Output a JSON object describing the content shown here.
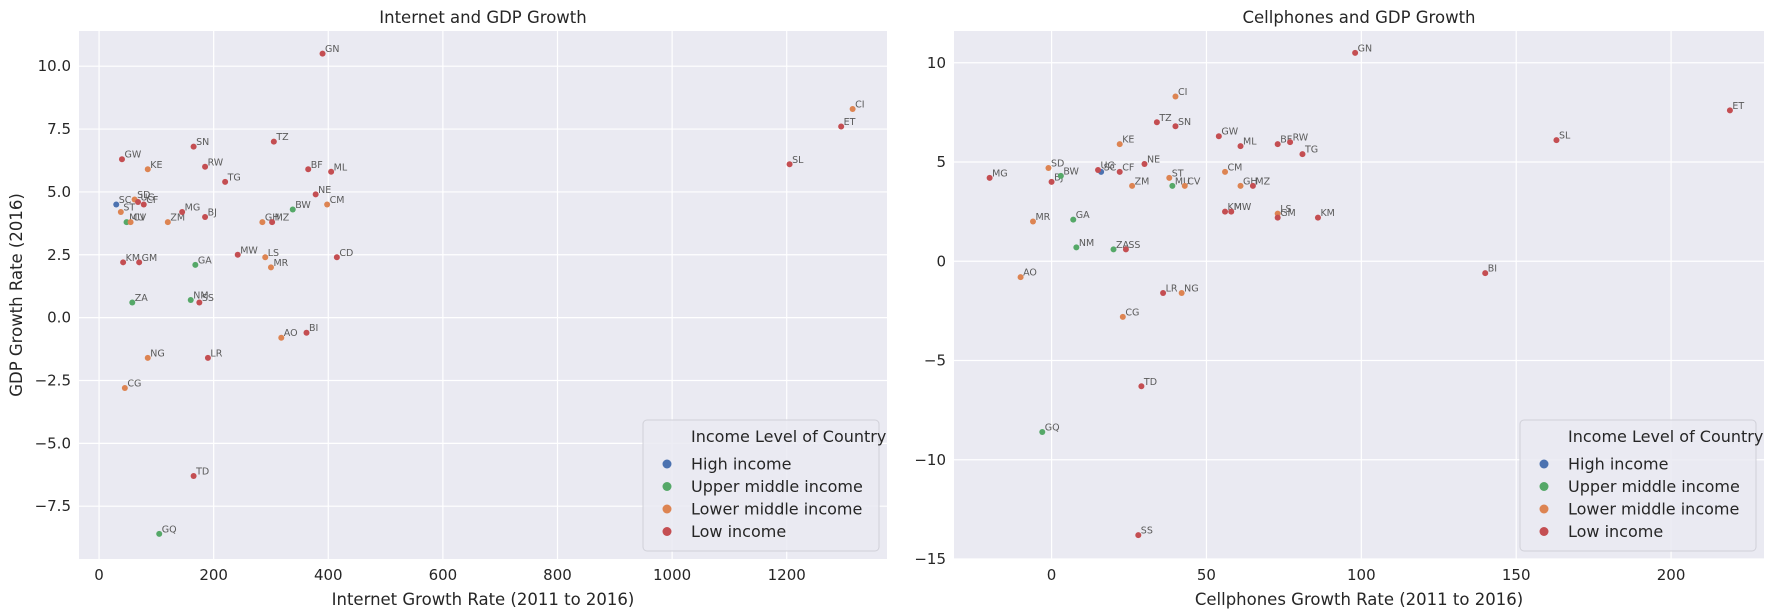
{
  "chart_data": [
    {
      "type": "scatter",
      "title": "Internet and GDP Growth",
      "xlabel": "Internet Growth Rate (2011 to 2016)",
      "ylabel": "GDP Growth Rate (2016)",
      "xlim": [
        -35,
        1375
      ],
      "ylim": [
        -9.6,
        11.4
      ],
      "xticks": [
        0,
        200,
        400,
        600,
        800,
        1000,
        1200
      ],
      "yticks": [
        -7.5,
        -5.0,
        -2.5,
        0.0,
        2.5,
        5.0,
        7.5,
        10.0
      ],
      "ytick_labels": [
        "−7.5",
        "−5.0",
        "−2.5",
        "0.0",
        "2.5",
        "5.0",
        "7.5",
        "10.0"
      ],
      "legend": {
        "title": "Income Level of Country",
        "position": "lower right",
        "entries": [
          "High income",
          "Upper middle income",
          "Lower middle income",
          "Low income"
        ]
      },
      "points": [
        {
          "label": "SC",
          "x": 30,
          "y": 4.5,
          "group": "High income"
        },
        {
          "label": "ST",
          "x": 38,
          "y": 4.2,
          "group": "Lower middle income"
        },
        {
          "label": "GW",
          "x": 40,
          "y": 6.3,
          "group": "Low income"
        },
        {
          "label": "KM",
          "x": 42,
          "y": 2.2,
          "group": "Low income"
        },
        {
          "label": "CG",
          "x": 45,
          "y": -2.8,
          "group": "Lower middle income"
        },
        {
          "label": "MU",
          "x": 48,
          "y": 3.8,
          "group": "Upper middle income"
        },
        {
          "label": "CV",
          "x": 55,
          "y": 3.8,
          "group": "Lower middle income"
        },
        {
          "label": "ZA",
          "x": 58,
          "y": 0.6,
          "group": "Upper middle income"
        },
        {
          "label": "SD",
          "x": 62,
          "y": 4.7,
          "group": "Lower middle income"
        },
        {
          "label": "UG",
          "x": 68,
          "y": 4.6,
          "group": "Low income"
        },
        {
          "label": "GM",
          "x": 70,
          "y": 2.2,
          "group": "Low income"
        },
        {
          "label": "CF",
          "x": 78,
          "y": 4.5,
          "group": "Low income"
        },
        {
          "label": "KE",
          "x": 85,
          "y": 5.9,
          "group": "Lower middle income"
        },
        {
          "label": "NG",
          "x": 85,
          "y": -1.6,
          "group": "Lower middle income"
        },
        {
          "label": "GQ",
          "x": 105,
          "y": -8.6,
          "group": "Upper middle income"
        },
        {
          "label": "ZM",
          "x": 120,
          "y": 3.8,
          "group": "Lower middle income"
        },
        {
          "label": "MG",
          "x": 145,
          "y": 4.2,
          "group": "Low income"
        },
        {
          "label": "NM",
          "x": 160,
          "y": 0.7,
          "group": "Upper middle income"
        },
        {
          "label": "SN",
          "x": 165,
          "y": 6.8,
          "group": "Low income"
        },
        {
          "label": "TD",
          "x": 165,
          "y": -6.3,
          "group": "Low income"
        },
        {
          "label": "GA",
          "x": 168,
          "y": 2.1,
          "group": "Upper middle income"
        },
        {
          "label": "SS",
          "x": 175,
          "y": 0.6,
          "group": "Low income"
        },
        {
          "label": "RW",
          "x": 185,
          "y": 6.0,
          "group": "Low income"
        },
        {
          "label": "BJ",
          "x": 185,
          "y": 4.0,
          "group": "Low income"
        },
        {
          "label": "LR",
          "x": 190,
          "y": -1.6,
          "group": "Low income"
        },
        {
          "label": "TG",
          "x": 220,
          "y": 5.4,
          "group": "Low income"
        },
        {
          "label": "MW",
          "x": 242,
          "y": 2.5,
          "group": "Low income"
        },
        {
          "label": "GH",
          "x": 285,
          "y": 3.8,
          "group": "Lower middle income"
        },
        {
          "label": "LS",
          "x": 290,
          "y": 2.4,
          "group": "Lower middle income"
        },
        {
          "label": "MR",
          "x": 300,
          "y": 2.0,
          "group": "Lower middle income"
        },
        {
          "label": "MZ",
          "x": 302,
          "y": 3.8,
          "group": "Low income"
        },
        {
          "label": "TZ",
          "x": 305,
          "y": 7.0,
          "group": "Low income"
        },
        {
          "label": "AO",
          "x": 318,
          "y": -0.8,
          "group": "Lower middle income"
        },
        {
          "label": "BW",
          "x": 338,
          "y": 4.3,
          "group": "Upper middle income"
        },
        {
          "label": "BI",
          "x": 362,
          "y": -0.6,
          "group": "Low income"
        },
        {
          "label": "BF",
          "x": 365,
          "y": 5.9,
          "group": "Low income"
        },
        {
          "label": "NE",
          "x": 378,
          "y": 4.9,
          "group": "Low income"
        },
        {
          "label": "GN",
          "x": 390,
          "y": 10.5,
          "group": "Low income"
        },
        {
          "label": "CM",
          "x": 398,
          "y": 4.5,
          "group": "Lower middle income"
        },
        {
          "label": "ML",
          "x": 405,
          "y": 5.8,
          "group": "Low income"
        },
        {
          "label": "CD",
          "x": 415,
          "y": 2.4,
          "group": "Low income"
        },
        {
          "label": "SL",
          "x": 1205,
          "y": 6.1,
          "group": "Low income"
        },
        {
          "label": "ET",
          "x": 1295,
          "y": 7.6,
          "group": "Low income"
        },
        {
          "label": "CI",
          "x": 1315,
          "y": 8.3,
          "group": "Lower middle income"
        }
      ]
    },
    {
      "type": "scatter",
      "title": "Cellphones and GDP Growth",
      "xlabel": "Cellphones Growth Rate (2011 to 2016)",
      "ylabel": "",
      "xlim": [
        -31.5,
        230
      ],
      "ylim": [
        -15,
        11.6
      ],
      "xticks": [
        0,
        50,
        100,
        150,
        200
      ],
      "yticks": [
        -15,
        -10,
        -5,
        0,
        5,
        10
      ],
      "ytick_labels": [
        "−15",
        "−10",
        "−5",
        "0",
        "5",
        "10"
      ],
      "legend": {
        "title": "Income Level of Country",
        "position": "lower right",
        "entries": [
          "High income",
          "Upper middle income",
          "Lower middle income",
          "Low income"
        ]
      },
      "points": [
        {
          "label": "MG",
          "x": -20,
          "y": 4.2,
          "group": "Low income"
        },
        {
          "label": "AO",
          "x": -10,
          "y": -0.8,
          "group": "Lower middle income"
        },
        {
          "label": "MR",
          "x": -6,
          "y": 2.0,
          "group": "Lower middle income"
        },
        {
          "label": "GQ",
          "x": -3,
          "y": -8.6,
          "group": "Upper middle income"
        },
        {
          "label": "SD",
          "x": -1,
          "y": 4.7,
          "group": "Lower middle income"
        },
        {
          "label": "BJ",
          "x": 0,
          "y": 4.0,
          "group": "Low income"
        },
        {
          "label": "BW",
          "x": 3,
          "y": 4.3,
          "group": "Upper middle income"
        },
        {
          "label": "GA",
          "x": 7,
          "y": 2.1,
          "group": "Upper middle income"
        },
        {
          "label": "NM",
          "x": 8,
          "y": 0.7,
          "group": "Upper middle income"
        },
        {
          "label": "SC",
          "x": 16,
          "y": 4.5,
          "group": "High income"
        },
        {
          "label": "UG",
          "x": 15,
          "y": 4.6,
          "group": "Low income"
        },
        {
          "label": "ZA",
          "x": 20,
          "y": 0.6,
          "group": "Upper middle income"
        },
        {
          "label": "KE",
          "x": 22,
          "y": 5.9,
          "group": "Lower middle income"
        },
        {
          "label": "CF",
          "x": 22,
          "y": 4.5,
          "group": "Low income"
        },
        {
          "label": "CG",
          "x": 23,
          "y": -2.8,
          "group": "Lower middle income"
        },
        {
          "label": "SS",
          "x": 24,
          "y": 0.6,
          "group": "Low income"
        },
        {
          "label": "ZM",
          "x": 26,
          "y": 3.8,
          "group": "Lower middle income"
        },
        {
          "label": "SS",
          "x": 28,
          "y": -13.8,
          "group": "Low income"
        },
        {
          "label": "TD",
          "x": 29,
          "y": -6.3,
          "group": "Low income"
        },
        {
          "label": "NE",
          "x": 30,
          "y": 4.9,
          "group": "Low income"
        },
        {
          "label": "TZ",
          "x": 34,
          "y": 7.0,
          "group": "Low income"
        },
        {
          "label": "LR",
          "x": 36,
          "y": -1.6,
          "group": "Low income"
        },
        {
          "label": "ST",
          "x": 38,
          "y": 4.2,
          "group": "Lower middle income"
        },
        {
          "label": "MU",
          "x": 39,
          "y": 3.8,
          "group": "Upper middle income"
        },
        {
          "label": "CI",
          "x": 40,
          "y": 8.3,
          "group": "Lower middle income"
        },
        {
          "label": "SN",
          "x": 40,
          "y": 6.8,
          "group": "Low income"
        },
        {
          "label": "NG",
          "x": 42,
          "y": -1.6,
          "group": "Lower middle income"
        },
        {
          "label": "CV",
          "x": 43,
          "y": 3.8,
          "group": "Lower middle income"
        },
        {
          "label": "GW",
          "x": 54,
          "y": 6.3,
          "group": "Low income"
        },
        {
          "label": "CM",
          "x": 56,
          "y": 4.5,
          "group": "Lower middle income"
        },
        {
          "label": "KM",
          "x": 56,
          "y": 2.5,
          "group": "Low income"
        },
        {
          "label": "MW",
          "x": 58,
          "y": 2.5,
          "group": "Low income"
        },
        {
          "label": "ML",
          "x": 61,
          "y": 5.8,
          "group": "Low income"
        },
        {
          "label": "GH",
          "x": 61,
          "y": 3.8,
          "group": "Lower middle income"
        },
        {
          "label": "MZ",
          "x": 65,
          "y": 3.8,
          "group": "Low income"
        },
        {
          "label": "BF",
          "x": 73,
          "y": 5.9,
          "group": "Low income"
        },
        {
          "label": "LS",
          "x": 73,
          "y": 2.4,
          "group": "Lower middle income"
        },
        {
          "label": "GM",
          "x": 73,
          "y": 2.2,
          "group": "Low income"
        },
        {
          "label": "RW",
          "x": 77,
          "y": 6.0,
          "group": "Low income"
        },
        {
          "label": "TG",
          "x": 81,
          "y": 5.4,
          "group": "Low income"
        },
        {
          "label": "KM",
          "x": 86,
          "y": 2.2,
          "group": "Low income"
        },
        {
          "label": "GN",
          "x": 98,
          "y": 10.5,
          "group": "Low income"
        },
        {
          "label": "BI",
          "x": 140,
          "y": -0.6,
          "group": "Low income"
        },
        {
          "label": "SL",
          "x": 163,
          "y": 6.1,
          "group": "Low income"
        },
        {
          "label": "ET",
          "x": 219,
          "y": 7.6,
          "group": "Low income"
        }
      ]
    }
  ],
  "colors": {
    "High income": "#4c72b0",
    "Upper middle income": "#55a868",
    "Lower middle income": "#dd8452",
    "Low income": "#c44e52",
    "plot_background": "#eaeaf2",
    "grid": "#ffffff"
  }
}
